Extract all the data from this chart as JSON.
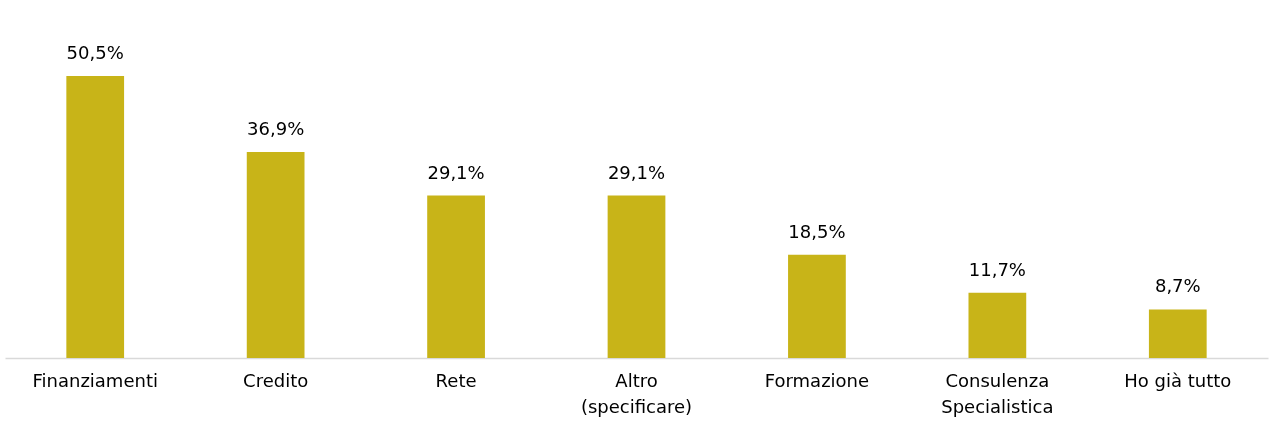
{
  "chart_data": {
    "type": "bar",
    "categories": [
      "Finanziamenti",
      "Credito",
      "Rete",
      "Altro\n(specificare)",
      "Formazione",
      "Consulenza\nSpecialistica",
      "Ho già tutto"
    ],
    "values": [
      50.5,
      36.9,
      29.1,
      29.1,
      18.5,
      11.7,
      8.7
    ],
    "value_labels": [
      "50,5%",
      "36,9%",
      "29,1%",
      "29,1%",
      "18,5%",
      "11,7%",
      "8,7%"
    ],
    "color": "#c8b418",
    "grid": false
  }
}
